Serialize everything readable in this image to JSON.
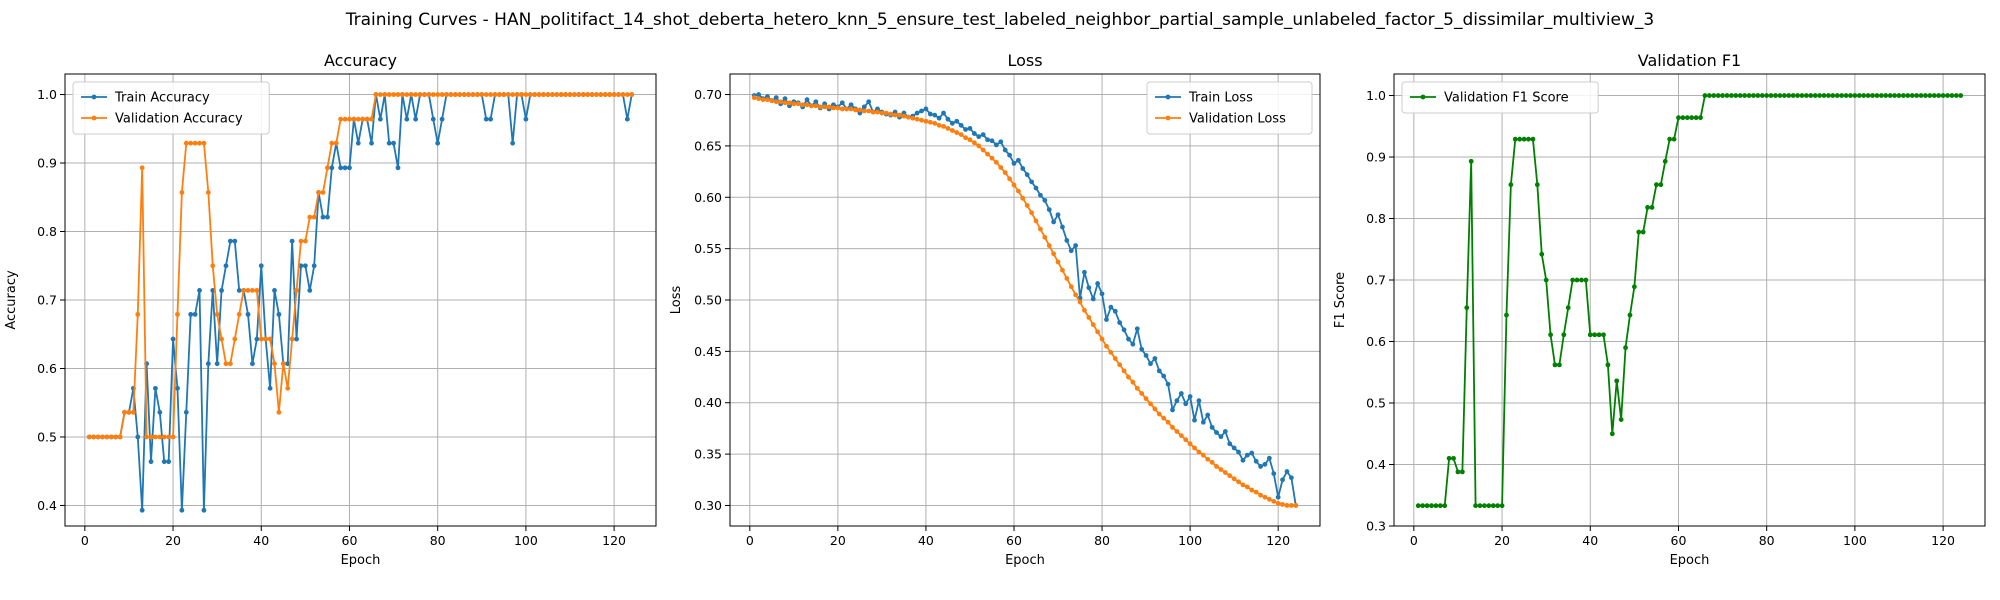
{
  "figure": {
    "suptitle": "Training Curves - HAN_politifact_14_shot_deberta_hetero_knn_5_ensure_test_labeled_neighbor_partial_sample_unlabeled_factor_5_dissimilar_multiview_3"
  },
  "chart_data": [
    {
      "type": "line",
      "title": "Accuracy",
      "xlabel": "Epoch",
      "ylabel": "Accuracy",
      "xlim": [
        -4.5,
        129.5
      ],
      "ylim": [
        0.37,
        1.03
      ],
      "xticks": [
        0,
        20,
        40,
        60,
        80,
        100,
        120
      ],
      "yticks": [
        0.4,
        0.5,
        0.6,
        0.7,
        0.8,
        0.9,
        1.0
      ],
      "ytick_labels": [
        "0.4",
        "0.5",
        "0.6",
        "0.7",
        "0.8",
        "0.9",
        "1.0"
      ],
      "grid": true,
      "legend": "upper-left",
      "series": [
        {
          "name": "Train Accuracy",
          "color": "#1f77b4",
          "values": [
            0.5,
            0.5,
            0.5,
            0.5,
            0.5,
            0.5,
            0.5,
            0.5,
            0.536,
            0.536,
            0.571,
            0.5,
            0.393,
            0.607,
            0.464,
            0.571,
            0.536,
            0.464,
            0.464,
            0.643,
            0.571,
            0.393,
            0.536,
            0.679,
            0.679,
            0.714,
            0.393,
            0.607,
            0.714,
            0.607,
            0.714,
            0.75,
            0.786,
            0.786,
            0.714,
            0.714,
            0.679,
            0.607,
            0.643,
            0.75,
            0.643,
            0.571,
            0.714,
            0.679,
            0.607,
            0.607,
            0.786,
            0.643,
            0.75,
            0.75,
            0.714,
            0.75,
            0.857,
            0.821,
            0.821,
            0.893,
            0.929,
            0.893,
            0.893,
            0.893,
            0.964,
            0.929,
            0.964,
            0.964,
            0.929,
            1.0,
            0.964,
            1.0,
            0.929,
            0.929,
            0.893,
            1.0,
            0.964,
            1.0,
            0.964,
            1.0,
            1.0,
            1.0,
            0.964,
            0.929,
            0.964,
            1.0,
            1.0,
            1.0,
            1.0,
            1.0,
            1.0,
            1.0,
            1.0,
            1.0,
            0.964,
            0.964,
            1.0,
            1.0,
            1.0,
            1.0,
            0.929,
            1.0,
            1.0,
            0.964,
            1.0,
            1.0,
            1.0,
            1.0,
            1.0,
            1.0,
            1.0,
            1.0,
            1.0,
            1.0,
            1.0,
            1.0,
            1.0,
            1.0,
            1.0,
            1.0,
            1.0,
            1.0,
            1.0,
            1.0,
            1.0,
            1.0,
            0.964,
            1.0
          ]
        },
        {
          "name": "Validation Accuracy",
          "color": "#ff7f0e",
          "values": [
            0.5,
            0.5,
            0.5,
            0.5,
            0.5,
            0.5,
            0.5,
            0.5,
            0.536,
            0.536,
            0.536,
            0.679,
            0.893,
            0.5,
            0.5,
            0.5,
            0.5,
            0.5,
            0.5,
            0.5,
            0.679,
            0.857,
            0.929,
            0.929,
            0.929,
            0.929,
            0.929,
            0.857,
            0.75,
            0.679,
            0.643,
            0.607,
            0.607,
            0.643,
            0.679,
            0.714,
            0.714,
            0.714,
            0.714,
            0.643,
            0.643,
            0.643,
            0.607,
            0.536,
            0.607,
            0.571,
            0.643,
            0.714,
            0.786,
            0.786,
            0.821,
            0.821,
            0.857,
            0.857,
            0.893,
            0.929,
            0.929,
            0.964,
            0.964,
            0.964,
            0.964,
            0.964,
            0.964,
            0.964,
            0.964,
            1.0,
            1.0,
            1.0,
            1.0,
            1.0,
            1.0,
            1.0,
            1.0,
            1.0,
            1.0,
            1.0,
            1.0,
            1.0,
            1.0,
            1.0,
            1.0,
            1.0,
            1.0,
            1.0,
            1.0,
            1.0,
            1.0,
            1.0,
            1.0,
            1.0,
            1.0,
            1.0,
            1.0,
            1.0,
            1.0,
            1.0,
            1.0,
            1.0,
            1.0,
            1.0,
            1.0,
            1.0,
            1.0,
            1.0,
            1.0,
            1.0,
            1.0,
            1.0,
            1.0,
            1.0,
            1.0,
            1.0,
            1.0,
            1.0,
            1.0,
            1.0,
            1.0,
            1.0,
            1.0,
            1.0,
            1.0,
            1.0,
            1.0,
            1.0
          ]
        }
      ]
    },
    {
      "type": "line",
      "title": "Loss",
      "xlabel": "Epoch",
      "ylabel": "Loss",
      "xlim": [
        -4.5,
        129.5
      ],
      "ylim": [
        0.28,
        0.72
      ],
      "xticks": [
        0,
        20,
        40,
        60,
        80,
        100,
        120
      ],
      "yticks": [
        0.3,
        0.35,
        0.4,
        0.45,
        0.5,
        0.55,
        0.6,
        0.65,
        0.7
      ],
      "ytick_labels": [
        "0.30",
        "0.35",
        "0.40",
        "0.45",
        "0.50",
        "0.55",
        "0.60",
        "0.65",
        "0.70"
      ],
      "grid": true,
      "legend": "upper-right",
      "series": [
        {
          "name": "Train Loss",
          "color": "#1f77b4",
          "values": [
            0.699,
            0.7,
            0.696,
            0.698,
            0.694,
            0.697,
            0.691,
            0.696,
            0.689,
            0.693,
            0.692,
            0.688,
            0.695,
            0.689,
            0.693,
            0.687,
            0.691,
            0.686,
            0.69,
            0.688,
            0.692,
            0.686,
            0.69,
            0.686,
            0.682,
            0.688,
            0.693,
            0.683,
            0.686,
            0.683,
            0.681,
            0.68,
            0.683,
            0.678,
            0.682,
            0.678,
            0.679,
            0.682,
            0.684,
            0.686,
            0.681,
            0.68,
            0.677,
            0.682,
            0.676,
            0.672,
            0.674,
            0.67,
            0.666,
            0.667,
            0.662,
            0.659,
            0.661,
            0.656,
            0.655,
            0.651,
            0.654,
            0.646,
            0.641,
            0.633,
            0.636,
            0.628,
            0.622,
            0.615,
            0.609,
            0.602,
            0.597,
            0.588,
            0.576,
            0.583,
            0.571,
            0.558,
            0.548,
            0.553,
            0.502,
            0.527,
            0.512,
            0.501,
            0.516,
            0.506,
            0.481,
            0.493,
            0.489,
            0.478,
            0.471,
            0.462,
            0.457,
            0.472,
            0.452,
            0.446,
            0.438,
            0.443,
            0.431,
            0.426,
            0.418,
            0.393,
            0.402,
            0.409,
            0.399,
            0.406,
            0.383,
            0.402,
            0.381,
            0.388,
            0.376,
            0.371,
            0.367,
            0.372,
            0.36,
            0.356,
            0.352,
            0.344,
            0.349,
            0.351,
            0.343,
            0.338,
            0.34,
            0.346,
            0.331,
            0.308,
            0.325,
            0.333,
            0.327,
            0.3
          ]
        },
        {
          "name": "Validation Loss",
          "color": "#ff7f0e",
          "values": [
            0.697,
            0.696,
            0.695,
            0.695,
            0.694,
            0.693,
            0.693,
            0.692,
            0.692,
            0.691,
            0.691,
            0.69,
            0.69,
            0.689,
            0.689,
            0.688,
            0.688,
            0.688,
            0.687,
            0.687,
            0.686,
            0.686,
            0.686,
            0.685,
            0.685,
            0.684,
            0.684,
            0.683,
            0.683,
            0.682,
            0.682,
            0.681,
            0.68,
            0.68,
            0.679,
            0.678,
            0.677,
            0.676,
            0.675,
            0.674,
            0.673,
            0.672,
            0.67,
            0.669,
            0.667,
            0.665,
            0.663,
            0.661,
            0.658,
            0.656,
            0.653,
            0.65,
            0.646,
            0.642,
            0.638,
            0.634,
            0.629,
            0.624,
            0.618,
            0.612,
            0.606,
            0.599,
            0.592,
            0.585,
            0.577,
            0.569,
            0.561,
            0.553,
            0.545,
            0.537,
            0.529,
            0.521,
            0.513,
            0.505,
            0.498,
            0.49,
            0.483,
            0.476,
            0.469,
            0.462,
            0.455,
            0.449,
            0.443,
            0.437,
            0.431,
            0.425,
            0.42,
            0.414,
            0.409,
            0.404,
            0.399,
            0.394,
            0.389,
            0.385,
            0.381,
            0.376,
            0.372,
            0.368,
            0.364,
            0.36,
            0.356,
            0.352,
            0.349,
            0.345,
            0.342,
            0.338,
            0.335,
            0.332,
            0.329,
            0.326,
            0.323,
            0.32,
            0.318,
            0.315,
            0.313,
            0.31,
            0.308,
            0.306,
            0.304,
            0.302,
            0.301,
            0.3,
            0.3,
            0.3
          ]
        }
      ]
    },
    {
      "type": "line",
      "title": "Validation F1",
      "xlabel": "Epoch",
      "ylabel": "F1 Score",
      "xlim": [
        -4.5,
        129.5
      ],
      "ylim": [
        0.3,
        1.035
      ],
      "xticks": [
        0,
        20,
        40,
        60,
        80,
        100,
        120
      ],
      "yticks": [
        0.3,
        0.4,
        0.5,
        0.6,
        0.7,
        0.8,
        0.9,
        1.0
      ],
      "ytick_labels": [
        "0.3",
        "0.4",
        "0.5",
        "0.6",
        "0.7",
        "0.8",
        "0.9",
        "1.0"
      ],
      "grid": true,
      "legend": "upper-left",
      "series": [
        {
          "name": "Validation F1 Score",
          "color": "#008000",
          "values": [
            0.333,
            0.333,
            0.333,
            0.333,
            0.333,
            0.333,
            0.333,
            0.41,
            0.41,
            0.388,
            0.388,
            0.655,
            0.893,
            0.333,
            0.333,
            0.333,
            0.333,
            0.333,
            0.333,
            0.333,
            0.643,
            0.855,
            0.929,
            0.929,
            0.929,
            0.929,
            0.929,
            0.855,
            0.742,
            0.7,
            0.611,
            0.562,
            0.562,
            0.611,
            0.655,
            0.7,
            0.7,
            0.7,
            0.7,
            0.611,
            0.611,
            0.611,
            0.611,
            0.562,
            0.45,
            0.536,
            0.473,
            0.59,
            0.643,
            0.689,
            0.778,
            0.778,
            0.818,
            0.818,
            0.855,
            0.855,
            0.893,
            0.929,
            0.929,
            0.964,
            0.964,
            0.964,
            0.964,
            0.964,
            0.964,
            1.0,
            1.0,
            1.0,
            1.0,
            1.0,
            1.0,
            1.0,
            1.0,
            1.0,
            1.0,
            1.0,
            1.0,
            1.0,
            1.0,
            1.0,
            1.0,
            1.0,
            1.0,
            1.0,
            1.0,
            1.0,
            1.0,
            1.0,
            1.0,
            1.0,
            1.0,
            1.0,
            1.0,
            1.0,
            1.0,
            1.0,
            1.0,
            1.0,
            1.0,
            1.0,
            1.0,
            1.0,
            1.0,
            1.0,
            1.0,
            1.0,
            1.0,
            1.0,
            1.0,
            1.0,
            1.0,
            1.0,
            1.0,
            1.0,
            1.0,
            1.0,
            1.0,
            1.0,
            1.0,
            1.0,
            1.0,
            1.0,
            1.0,
            1.0
          ]
        }
      ]
    }
  ]
}
